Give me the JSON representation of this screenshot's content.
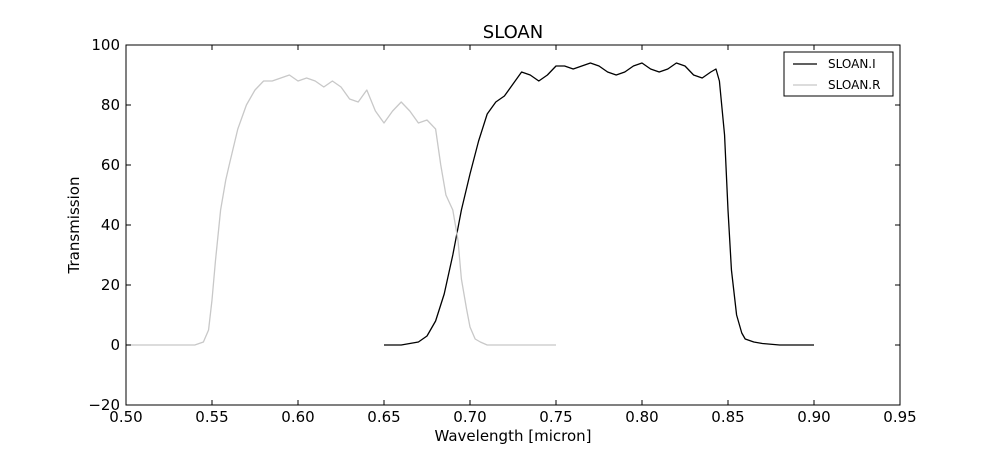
{
  "chart_data": {
    "type": "line",
    "title": "SLOAN",
    "xlabel": "Wavelength [micron]",
    "ylabel": "Transmission",
    "xlim": [
      0.5,
      0.95
    ],
    "ylim": [
      -20,
      100
    ],
    "xticks": [
      "0.50",
      "0.55",
      "0.60",
      "0.65",
      "0.70",
      "0.75",
      "0.80",
      "0.85",
      "0.90",
      "0.95"
    ],
    "yticks": [
      "−20",
      "0",
      "20",
      "40",
      "60",
      "80",
      "100"
    ],
    "legend_position": "top-right",
    "grid": false,
    "series": [
      {
        "name": "SLOAN.I",
        "color": "#000000",
        "x": [
          0.65,
          0.66,
          0.67,
          0.675,
          0.68,
          0.685,
          0.69,
          0.695,
          0.7,
          0.705,
          0.71,
          0.715,
          0.72,
          0.725,
          0.73,
          0.735,
          0.74,
          0.745,
          0.75,
          0.755,
          0.76,
          0.765,
          0.77,
          0.775,
          0.78,
          0.785,
          0.79,
          0.795,
          0.8,
          0.805,
          0.81,
          0.815,
          0.82,
          0.825,
          0.83,
          0.835,
          0.84,
          0.843,
          0.845,
          0.848,
          0.85,
          0.852,
          0.855,
          0.858,
          0.86,
          0.865,
          0.87,
          0.88,
          0.89,
          0.9
        ],
        "y": [
          0,
          0,
          1,
          3,
          8,
          17,
          30,
          45,
          57,
          68,
          77,
          81,
          83,
          87,
          91,
          90,
          88,
          90,
          93,
          93,
          92,
          93,
          94,
          93,
          91,
          90,
          91,
          93,
          94,
          92,
          91,
          92,
          94,
          93,
          90,
          89,
          91,
          92,
          88,
          70,
          45,
          25,
          10,
          4,
          2,
          1,
          0.5,
          0,
          0,
          0
        ]
      },
      {
        "name": "SLOAN.R",
        "color": "#c8c8c8",
        "x": [
          0.5,
          0.52,
          0.54,
          0.545,
          0.548,
          0.55,
          0.552,
          0.555,
          0.558,
          0.56,
          0.565,
          0.57,
          0.575,
          0.58,
          0.585,
          0.59,
          0.595,
          0.6,
          0.605,
          0.61,
          0.615,
          0.62,
          0.625,
          0.63,
          0.635,
          0.64,
          0.645,
          0.65,
          0.655,
          0.66,
          0.665,
          0.67,
          0.675,
          0.68,
          0.683,
          0.686,
          0.69,
          0.693,
          0.695,
          0.698,
          0.7,
          0.703,
          0.706,
          0.71,
          0.72,
          0.75
        ],
        "y": [
          0,
          0,
          0,
          1,
          5,
          15,
          28,
          45,
          55,
          60,
          72,
          80,
          85,
          88,
          88,
          89,
          90,
          88,
          89,
          88,
          86,
          88,
          86,
          82,
          81,
          85,
          78,
          74,
          78,
          81,
          78,
          74,
          75,
          72,
          60,
          50,
          45,
          35,
          22,
          12,
          6,
          2,
          1,
          0,
          0,
          0
        ]
      }
    ]
  }
}
